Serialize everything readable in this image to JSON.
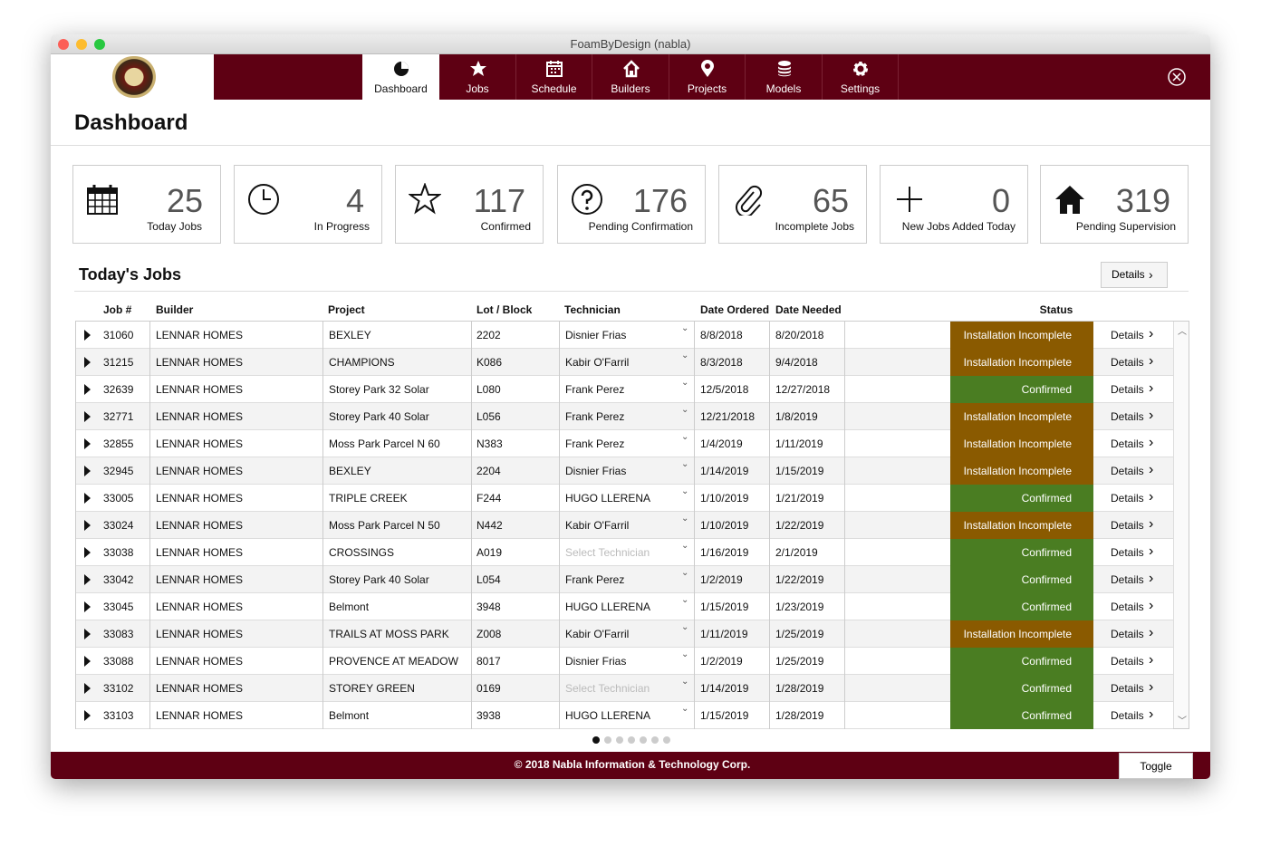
{
  "window": {
    "title": "FoamByDesign (nabla)"
  },
  "nav": [
    "Dashboard",
    "Jobs",
    "Schedule",
    "Builders",
    "Projects",
    "Models",
    "Settings"
  ],
  "nav_active": 0,
  "page": {
    "title": "Dashboard"
  },
  "stats": [
    {
      "value": "25",
      "label": "Today Jobs"
    },
    {
      "value": "4",
      "label": "In Progress"
    },
    {
      "value": "117",
      "label": "Confirmed"
    },
    {
      "value": "176",
      "label": "Pending Confirmation"
    },
    {
      "value": "65",
      "label": "Incomplete Jobs"
    },
    {
      "value": "0",
      "label": "New Jobs Added Today"
    },
    {
      "value": "319",
      "label": "Pending Supervision"
    }
  ],
  "section": {
    "title": "Today's Jobs",
    "button": "Details"
  },
  "table": {
    "columns": [
      "Job #",
      "Builder",
      "Project",
      "Lot / Block",
      "Technician",
      "Date Ordered",
      "Date Needed",
      "Status"
    ],
    "row_action": "Details",
    "technician_placeholder": "Select Technician",
    "status_colors": {
      "Installation Incomplete": "#8a5a00",
      "Confirmed": "#4a7d22"
    },
    "rows": [
      [
        "31060",
        "LENNAR HOMES",
        "BEXLEY",
        "2202",
        "Disnier Frias",
        "8/8/2018",
        "8/20/2018",
        "Installation Incomplete"
      ],
      [
        "31215",
        "LENNAR HOMES",
        "CHAMPIONS",
        "K086",
        "Kabir O'Farril",
        "8/3/2018",
        "9/4/2018",
        "Installation Incomplete"
      ],
      [
        "32639",
        "LENNAR HOMES",
        "Storey Park 32 Solar",
        "L080",
        "Frank Perez",
        "12/5/2018",
        "12/27/2018",
        "Confirmed"
      ],
      [
        "32771",
        "LENNAR HOMES",
        "Storey Park 40 Solar",
        "L056",
        "Frank Perez",
        "12/21/2018",
        "1/8/2019",
        "Installation Incomplete"
      ],
      [
        "32855",
        "LENNAR HOMES",
        "Moss Park Parcel N 60",
        "N383",
        "Frank Perez",
        "1/4/2019",
        "1/11/2019",
        "Installation Incomplete"
      ],
      [
        "32945",
        "LENNAR HOMES",
        "BEXLEY",
        "2204",
        "Disnier Frias",
        "1/14/2019",
        "1/15/2019",
        "Installation Incomplete"
      ],
      [
        "33005",
        "LENNAR HOMES",
        "TRIPLE CREEK",
        "F244",
        "HUGO LLERENA",
        "1/10/2019",
        "1/21/2019",
        "Confirmed"
      ],
      [
        "33024",
        "LENNAR HOMES",
        "Moss Park Parcel N 50",
        "N442",
        "Kabir O'Farril",
        "1/10/2019",
        "1/22/2019",
        "Installation Incomplete"
      ],
      [
        "33038",
        "LENNAR HOMES",
        "CROSSINGS",
        "A019",
        null,
        "1/16/2019",
        "2/1/2019",
        "Confirmed"
      ],
      [
        "33042",
        "LENNAR HOMES",
        "Storey Park 40 Solar",
        "L054",
        "Frank Perez",
        "1/2/2019",
        "1/22/2019",
        "Confirmed"
      ],
      [
        "33045",
        "LENNAR HOMES",
        "Belmont",
        "3948",
        "HUGO LLERENA",
        "1/15/2019",
        "1/23/2019",
        "Confirmed"
      ],
      [
        "33083",
        "LENNAR HOMES",
        "TRAILS AT MOSS PARK",
        "Z008",
        "Kabir O'Farril",
        "1/11/2019",
        "1/25/2019",
        "Installation Incomplete"
      ],
      [
        "33088",
        "LENNAR HOMES",
        "PROVENCE AT MEADOW",
        "8017",
        "Disnier Frias",
        "1/2/2019",
        "1/25/2019",
        "Confirmed"
      ],
      [
        "33102",
        "LENNAR HOMES",
        "STOREY GREEN",
        "0169",
        null,
        "1/14/2019",
        "1/28/2019",
        "Confirmed"
      ],
      [
        "33103",
        "LENNAR HOMES",
        "Belmont",
        "3938",
        "HUGO LLERENA",
        "1/15/2019",
        "1/28/2019",
        "Confirmed"
      ]
    ]
  },
  "footer": {
    "text": "© 2018 Nabla Information & Technology Corp.",
    "button": "Toggle"
  }
}
